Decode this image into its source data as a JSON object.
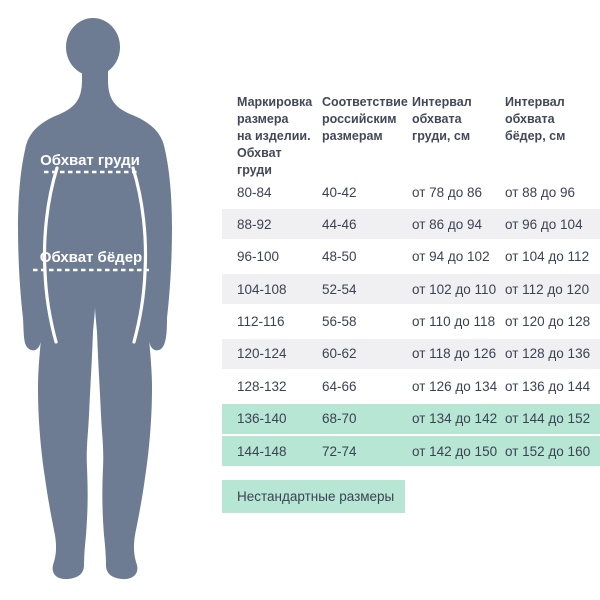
{
  "figure": {
    "chest_label": "Обхват груди",
    "hips_label": "Обхват бёдер"
  },
  "table": {
    "headers": [
      "Маркировка\nразмера\nна изделии.\nОбхват\nгруди",
      "Соответствие\nроссийским\nразмерам",
      "Интервал\nобхвата\nгруди, см",
      "Интервал\nобхвата\nбёдер, см"
    ],
    "rows": [
      [
        "80-84",
        "40-42",
        "от 78 до 86",
        "от 88 до 96"
      ],
      [
        "88-92",
        "44-46",
        "от 86 до 94",
        "от 96 до 104"
      ],
      [
        "96-100",
        "48-50",
        "от 94 до 102",
        "от 104 до 112"
      ],
      [
        "104-108",
        "52-54",
        "от 102 до 110",
        "от 112 до 120"
      ],
      [
        "112-116",
        "56-58",
        "от 110 до 118",
        "от 120 до 128"
      ],
      [
        "120-124",
        "60-62",
        "от 118 до 126",
        "от 128 до 136"
      ],
      [
        "128-132",
        "64-66",
        "от 126 до 134",
        "от 136 до 144"
      ],
      [
        "136-140",
        "68-70",
        "от 134 до 142",
        "от 144 до 152"
      ],
      [
        "144-148",
        "72-74",
        "от 142 до 150",
        "от 152 до 160"
      ]
    ],
    "highlight_rows": [
      7,
      8
    ]
  },
  "legend": {
    "label": "Нестандартные размеры"
  },
  "colors": {
    "silhouette": "#6e7c93",
    "highlight": "#b7e6d5",
    "row_alt": "#f0f0f2",
    "cell_text": "#3b4254",
    "header_text": "#414959"
  }
}
